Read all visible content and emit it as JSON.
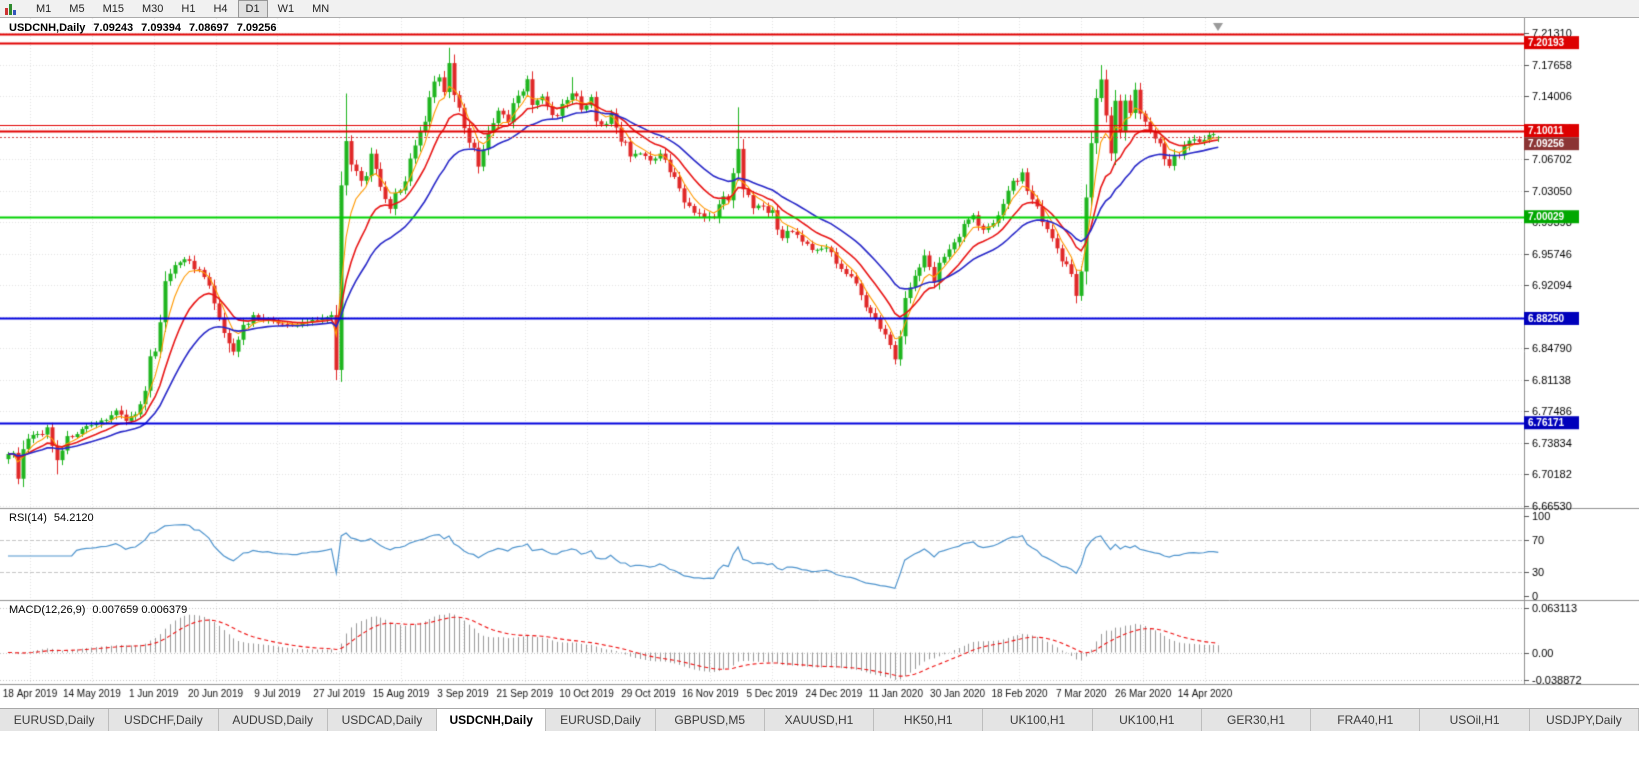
{
  "toolbar": {
    "timeframes": [
      "M1",
      "M5",
      "M15",
      "M30",
      "H1",
      "H4",
      "D1",
      "W1",
      "MN"
    ],
    "active_timeframe": "D1"
  },
  "chart": {
    "symbol_title": "USDCNH,Daily",
    "ohlc": {
      "open": "7.09243",
      "high": "7.09394",
      "low": "7.08697",
      "close": "7.09256"
    }
  },
  "price_scale": {
    "top_price": 7.2131,
    "bottom_price": 6.6653,
    "ticks": [
      "7.21310",
      "7.17658",
      "7.14006",
      "7.10354",
      "7.06702",
      "7.03050",
      "6.99398",
      "6.95746",
      "6.92094",
      "6.88442",
      "6.84790",
      "6.81138",
      "6.77486",
      "6.73834",
      "6.70182",
      "6.66530"
    ]
  },
  "hlines": [
    {
      "price": 7.212,
      "color": "#e00000",
      "width": 2,
      "badge": null,
      "badge_bg": null
    },
    {
      "price": 7.20193,
      "color": "#e00000",
      "width": 2,
      "badge": "7.20193",
      "badge_bg": "#dd0000"
    },
    {
      "price": 7.1065,
      "color": "#e00000",
      "width": 1,
      "badge": null,
      "badge_bg": null
    },
    {
      "price": 7.10011,
      "color": "#e00000",
      "width": 2,
      "badge": "7.10011",
      "badge_bg": "#dd0000"
    },
    {
      "price": 7.00029,
      "color": "#00d200",
      "width": 2,
      "badge": "7.00029",
      "badge_bg": "#00a800"
    },
    {
      "price": 6.8825,
      "color": "#0000dd",
      "width": 2,
      "badge": "6.88250",
      "badge_bg": "#0000bb"
    },
    {
      "price": 6.76171,
      "color": "#0000dd",
      "width": 2,
      "badge": "6.76171",
      "badge_bg": "#0000bb"
    }
  ],
  "current_price": {
    "value": 7.09256,
    "label": "7.09256",
    "line_color": "#cf4a4a",
    "badge_bg": "#8b3434"
  },
  "x_axis": {
    "labels": [
      "18 Apr 2019",
      "14 May 2019",
      "1 Jun 2019",
      "20 Jun 2019",
      "9 Jul 2019",
      "27 Jul 2019",
      "15 Aug 2019",
      "3 Sep 2019",
      "21 Sep 2019",
      "10 Oct 2019",
      "29 Oct 2019",
      "16 Nov 2019",
      "5 Dec 2019",
      "24 Dec 2019",
      "11 Jan 2020",
      "30 Jan 2020",
      "18 Feb 2020",
      "7 Mar 2020",
      "26 Mar 2020",
      "14 Apr 2020"
    ]
  },
  "rsi": {
    "label": "RSI(14)",
    "value": "54.2120",
    "levels": [
      "100",
      "70",
      "30",
      "0"
    ],
    "level_values": [
      100,
      70,
      30,
      0
    ],
    "line_color": "#4f94cd"
  },
  "macd": {
    "label": "MACD(12,26,9)",
    "values": "0.007659 0.006379",
    "scale_max": "0.063113",
    "scale_zero": "0.00",
    "scale_min": "-0.038872",
    "vmax": 0.063113,
    "vmin": -0.038872,
    "hist_color": "#9a9a9a",
    "signal_color": "#ee1111"
  },
  "tabs": [
    {
      "label": "EURUSD,Daily",
      "active": false
    },
    {
      "label": "USDCHF,Daily",
      "active": false
    },
    {
      "label": "AUDUSD,Daily",
      "active": false
    },
    {
      "label": "USDCAD,Daily",
      "active": false
    },
    {
      "label": "USDCNH,Daily",
      "active": true
    },
    {
      "label": "EURUSD,Daily",
      "active": false
    },
    {
      "label": "GBPUSD,M5",
      "active": false
    },
    {
      "label": "XAUUSD,H1",
      "active": false
    },
    {
      "label": "HK50,H1",
      "active": false
    },
    {
      "label": "UK100,H1",
      "active": false
    },
    {
      "label": "UK100,H1",
      "active": false
    },
    {
      "label": "GER30,H1",
      "active": false
    },
    {
      "label": "FRA40,H1",
      "active": false
    },
    {
      "label": "USOil,H1",
      "active": false
    },
    {
      "label": "USDJPY,Daily",
      "active": false
    }
  ],
  "chart_data": {
    "type": "candlestick",
    "symbol": "USDCNH",
    "timeframe": "Daily",
    "count": 248,
    "up_color": "#1fb51f",
    "down_color": "#e02828",
    "ma": [
      {
        "period": 5,
        "color": "#ff9900"
      },
      {
        "period": 12,
        "color": "#e81616"
      },
      {
        "period": 24,
        "color": "#2828c8"
      }
    ],
    "last_ohlc": [
      7.09243,
      7.09394,
      7.08697,
      7.09256
    ],
    "anchors": [
      [
        0,
        6.733
      ],
      [
        2,
        6.706
      ],
      [
        4,
        6.742
      ],
      [
        6,
        6.748
      ],
      [
        8,
        6.752
      ],
      [
        10,
        6.722
      ],
      [
        12,
        6.744
      ],
      [
        14,
        6.75
      ],
      [
        16,
        6.756
      ],
      [
        18,
        6.758
      ],
      [
        20,
        6.768
      ],
      [
        22,
        6.775
      ],
      [
        24,
        6.766
      ],
      [
        26,
        6.772
      ],
      [
        28,
        6.788
      ],
      [
        30,
        6.858
      ],
      [
        32,
        6.922
      ],
      [
        34,
        6.946
      ],
      [
        36,
        6.953
      ],
      [
        38,
        6.941
      ],
      [
        40,
        6.93
      ],
      [
        42,
        6.9
      ],
      [
        44,
        6.862
      ],
      [
        46,
        6.85
      ],
      [
        48,
        6.872
      ],
      [
        50,
        6.886
      ],
      [
        54,
        6.879
      ],
      [
        58,
        6.873
      ],
      [
        62,
        6.881
      ],
      [
        65,
        6.884
      ],
      [
        67,
        6.888
      ],
      [
        68,
        7.05
      ],
      [
        69,
        7.085
      ],
      [
        70,
        7.058
      ],
      [
        72,
        7.04
      ],
      [
        74,
        7.066
      ],
      [
        76,
        7.03
      ],
      [
        78,
        7.012
      ],
      [
        80,
        7.034
      ],
      [
        82,
        7.062
      ],
      [
        84,
        7.092
      ],
      [
        86,
        7.131
      ],
      [
        88,
        7.168
      ],
      [
        89,
        7.152
      ],
      [
        90,
        7.176
      ],
      [
        91,
        7.142
      ],
      [
        93,
        7.103
      ],
      [
        95,
        7.078
      ],
      [
        96,
        7.064
      ],
      [
        98,
        7.092
      ],
      [
        100,
        7.122
      ],
      [
        102,
        7.112
      ],
      [
        104,
        7.141
      ],
      [
        106,
        7.152
      ],
      [
        107,
        7.128
      ],
      [
        109,
        7.142
      ],
      [
        111,
        7.115
      ],
      [
        113,
        7.128
      ],
      [
        115,
        7.147
      ],
      [
        117,
        7.122
      ],
      [
        119,
        7.133
      ],
      [
        121,
        7.103
      ],
      [
        123,
        7.117
      ],
      [
        125,
        7.092
      ],
      [
        127,
        7.072
      ],
      [
        129,
        7.077
      ],
      [
        131,
        7.062
      ],
      [
        133,
        7.071
      ],
      [
        135,
        7.052
      ],
      [
        137,
        7.032
      ],
      [
        139,
        7.012
      ],
      [
        141,
        7.002
      ],
      [
        143,
        6.996
      ],
      [
        145,
        7.012
      ],
      [
        147,
        7.028
      ],
      [
        149,
        7.096
      ],
      [
        150,
        7.032
      ],
      [
        152,
        7.012
      ],
      [
        154,
        7.017
      ],
      [
        156,
        7.002
      ],
      [
        158,
        6.977
      ],
      [
        160,
        6.987
      ],
      [
        162,
        6.972
      ],
      [
        164,
        6.962
      ],
      [
        166,
        6.967
      ],
      [
        168,
        6.957
      ],
      [
        170,
        6.942
      ],
      [
        172,
        6.932
      ],
      [
        174,
        6.907
      ],
      [
        176,
        6.887
      ],
      [
        178,
        6.871
      ],
      [
        180,
        6.857
      ],
      [
        181,
        6.847
      ],
      [
        183,
        6.902
      ],
      [
        185,
        6.936
      ],
      [
        187,
        6.951
      ],
      [
        189,
        6.931
      ],
      [
        191,
        6.956
      ],
      [
        193,
        6.971
      ],
      [
        195,
        6.991
      ],
      [
        197,
        7.001
      ],
      [
        199,
        6.981
      ],
      [
        201,
        6.996
      ],
      [
        203,
        7.021
      ],
      [
        205,
        7.041
      ],
      [
        207,
        7.046
      ],
      [
        209,
        7.021
      ],
      [
        211,
        6.991
      ],
      [
        213,
        6.971
      ],
      [
        215,
        6.951
      ],
      [
        217,
        6.936
      ],
      [
        218,
        6.921
      ],
      [
        219,
        6.946
      ],
      [
        220,
        7.001
      ],
      [
        221,
        7.081
      ],
      [
        222,
        7.141
      ],
      [
        223,
        7.161
      ],
      [
        224,
        7.121
      ],
      [
        225,
        7.092
      ],
      [
        226,
        7.131
      ],
      [
        227,
        7.111
      ],
      [
        228,
        7.141
      ],
      [
        229,
        7.121
      ],
      [
        230,
        7.148
      ],
      [
        231,
        7.126
      ],
      [
        233,
        7.101
      ],
      [
        235,
        7.081
      ],
      [
        237,
        7.062
      ],
      [
        239,
        7.076
      ],
      [
        241,
        7.091
      ],
      [
        243,
        7.086
      ],
      [
        245,
        7.096
      ],
      [
        247,
        7.09256
      ]
    ],
    "spikes": [
      {
        "i": 2,
        "low": 6.696
      },
      {
        "i": 10,
        "low": 6.702
      },
      {
        "i": 45,
        "low": 6.843
      },
      {
        "i": 69,
        "high": 7.143
      },
      {
        "i": 90,
        "high": 7.196
      },
      {
        "i": 115,
        "high": 7.162
      },
      {
        "i": 149,
        "high": 7.127
      },
      {
        "i": 181,
        "low": 6.839
      },
      {
        "i": 218,
        "low": 6.909
      },
      {
        "i": 223,
        "high": 7.176
      }
    ]
  }
}
